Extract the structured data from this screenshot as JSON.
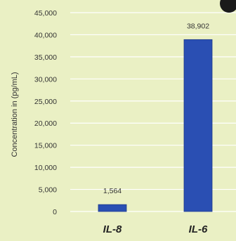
{
  "chart_data": {
    "type": "bar",
    "ylabel": "Concentration in (pg/mL)",
    "categories": [
      "IL-8",
      "IL-6"
    ],
    "values": [
      1564,
      38902
    ],
    "data_labels": [
      "1,564",
      "38,902"
    ],
    "ylim": [
      0,
      45000
    ],
    "yticks": [
      "0",
      "5,000",
      "10,000",
      "15,000",
      "20,000",
      "25,000",
      "30,000",
      "35,000",
      "40,000",
      "45,000"
    ],
    "grid": true,
    "bar_color": "#2a4fb3",
    "bar_edge_color": "#1d3a8a",
    "grid_color": "#ffffff"
  }
}
